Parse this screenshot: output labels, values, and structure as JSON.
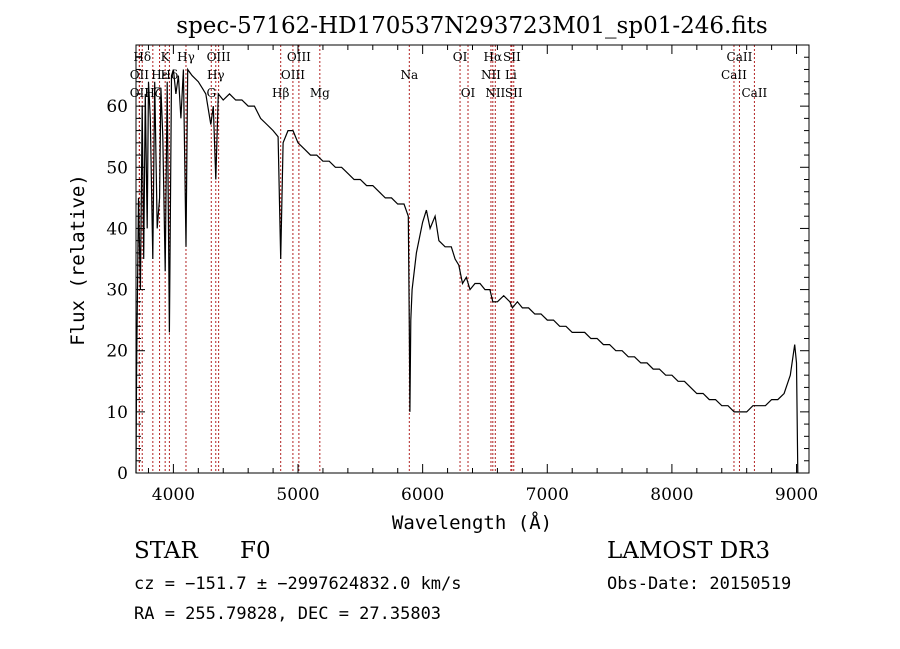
{
  "chart_data": {
    "type": "line",
    "title": "spec-57162-HD170537N293723M01_sp01-246.fits",
    "xlabel": "Wavelength (Å)",
    "ylabel": "Flux (relative)",
    "xlim": [
      3700,
      9100
    ],
    "ylim": [
      0,
      70
    ],
    "xticks": [
      4000,
      5000,
      6000,
      7000,
      8000,
      9000
    ],
    "yticks": [
      0,
      10,
      20,
      30,
      40,
      50,
      60
    ],
    "grid": false,
    "legend": "none",
    "line_color": "#000000",
    "marker_color": "#b22222",
    "spectrum": [
      [
        3700,
        0
      ],
      [
        3705,
        17
      ],
      [
        3720,
        45
      ],
      [
        3735,
        30
      ],
      [
        3750,
        60
      ],
      [
        3762,
        35
      ],
      [
        3775,
        62
      ],
      [
        3790,
        40
      ],
      [
        3800,
        64
      ],
      [
        3815,
        58
      ],
      [
        3835,
        35
      ],
      [
        3850,
        64
      ],
      [
        3870,
        40
      ],
      [
        3889,
        45
      ],
      [
        3900,
        63
      ],
      [
        3915,
        55
      ],
      [
        3934,
        33
      ],
      [
        3950,
        64
      ],
      [
        3968,
        23
      ],
      [
        3985,
        65
      ],
      [
        4000,
        66
      ],
      [
        4020,
        62
      ],
      [
        4040,
        65
      ],
      [
        4060,
        58
      ],
      [
        4080,
        66
      ],
      [
        4101,
        37
      ],
      [
        4115,
        66
      ],
      [
        4150,
        65
      ],
      [
        4200,
        64
      ],
      [
        4230,
        63
      ],
      [
        4260,
        62
      ],
      [
        4300,
        57
      ],
      [
        4320,
        60
      ],
      [
        4340,
        48
      ],
      [
        4360,
        62
      ],
      [
        4400,
        61
      ],
      [
        4450,
        62
      ],
      [
        4500,
        61
      ],
      [
        4550,
        61
      ],
      [
        4600,
        60
      ],
      [
        4650,
        60
      ],
      [
        4700,
        58
      ],
      [
        4750,
        57
      ],
      [
        4800,
        56
      ],
      [
        4840,
        55
      ],
      [
        4861,
        35
      ],
      [
        4880,
        54
      ],
      [
        4920,
        56
      ],
      [
        4960,
        56
      ],
      [
        5000,
        54
      ],
      [
        5050,
        53
      ],
      [
        5100,
        52
      ],
      [
        5150,
        52
      ],
      [
        5200,
        51
      ],
      [
        5250,
        51
      ],
      [
        5300,
        50
      ],
      [
        5350,
        50
      ],
      [
        5400,
        49
      ],
      [
        5450,
        48
      ],
      [
        5500,
        48
      ],
      [
        5550,
        47
      ],
      [
        5600,
        47
      ],
      [
        5650,
        46
      ],
      [
        5700,
        45
      ],
      [
        5750,
        45
      ],
      [
        5800,
        44
      ],
      [
        5850,
        44
      ],
      [
        5885,
        42
      ],
      [
        5893,
        24
      ],
      [
        5898,
        10
      ],
      [
        5905,
        25
      ],
      [
        5915,
        30
      ],
      [
        5950,
        36
      ],
      [
        6000,
        41
      ],
      [
        6030,
        43
      ],
      [
        6060,
        40
      ],
      [
        6100,
        42
      ],
      [
        6130,
        38
      ],
      [
        6180,
        37
      ],
      [
        6230,
        37
      ],
      [
        6260,
        35
      ],
      [
        6290,
        34
      ],
      [
        6320,
        31
      ],
      [
        6350,
        32
      ],
      [
        6380,
        30
      ],
      [
        6420,
        31
      ],
      [
        6460,
        31
      ],
      [
        6500,
        30
      ],
      [
        6540,
        30
      ],
      [
        6563,
        28
      ],
      [
        6600,
        28
      ],
      [
        6650,
        29
      ],
      [
        6700,
        28
      ],
      [
        6720,
        27
      ],
      [
        6760,
        28
      ],
      [
        6800,
        27
      ],
      [
        6850,
        27
      ],
      [
        6900,
        26
      ],
      [
        6950,
        26
      ],
      [
        7000,
        25
      ],
      [
        7050,
        25
      ],
      [
        7100,
        24
      ],
      [
        7150,
        24
      ],
      [
        7200,
        23
      ],
      [
        7250,
        23
      ],
      [
        7300,
        23
      ],
      [
        7350,
        22
      ],
      [
        7400,
        22
      ],
      [
        7450,
        21
      ],
      [
        7500,
        21
      ],
      [
        7550,
        20
      ],
      [
        7600,
        20
      ],
      [
        7650,
        19
      ],
      [
        7700,
        19
      ],
      [
        7750,
        18
      ],
      [
        7800,
        18
      ],
      [
        7850,
        17
      ],
      [
        7900,
        17
      ],
      [
        7950,
        16
      ],
      [
        8000,
        16
      ],
      [
        8050,
        15
      ],
      [
        8100,
        15
      ],
      [
        8150,
        14
      ],
      [
        8200,
        13
      ],
      [
        8250,
        13
      ],
      [
        8300,
        12
      ],
      [
        8350,
        12
      ],
      [
        8400,
        11
      ],
      [
        8450,
        11
      ],
      [
        8500,
        10
      ],
      [
        8550,
        10
      ],
      [
        8600,
        10
      ],
      [
        8650,
        11
      ],
      [
        8700,
        11
      ],
      [
        8750,
        11
      ],
      [
        8800,
        12
      ],
      [
        8850,
        12
      ],
      [
        8900,
        13
      ],
      [
        8950,
        16
      ],
      [
        8985,
        21
      ],
      [
        9000,
        18
      ],
      [
        9010,
        0
      ]
    ],
    "lines": [
      {
        "label": "Hδ",
        "x": 3750,
        "row": 0
      },
      {
        "label": "K",
        "x": 3934,
        "row": 0
      },
      {
        "label": "Hγ",
        "x": 4101,
        "row": 0
      },
      {
        "label": "OIII",
        "x": 4363,
        "row": 0
      },
      {
        "label": "OIII",
        "x": 5007,
        "row": 0
      },
      {
        "label": "OI",
        "x": 6300,
        "row": 0
      },
      {
        "label": "Hα",
        "x": 6563,
        "row": 0
      },
      {
        "label": "SII",
        "x": 6716,
        "row": 0
      },
      {
        "label": "CaII",
        "x": 8542,
        "row": 0
      },
      {
        "label": "OII",
        "x": 3727,
        "row": 1
      },
      {
        "label": "Hε",
        "x": 3889,
        "row": 1
      },
      {
        "label": "Hδ",
        "x": 3968,
        "row": 1
      },
      {
        "label": "Hγ",
        "x": 4340,
        "row": 1
      },
      {
        "label": "OIII",
        "x": 4959,
        "row": 1
      },
      {
        "label": "Na",
        "x": 5893,
        "row": 1
      },
      {
        "label": "NII",
        "x": 6548,
        "row": 1
      },
      {
        "label": "Li",
        "x": 6708,
        "row": 1
      },
      {
        "label": "CaII",
        "x": 8498,
        "row": 1
      },
      {
        "label": "OII",
        "x": 3727,
        "row": 2
      },
      {
        "label": "Hζ",
        "x": 3835,
        "row": 2
      },
      {
        "label": "G",
        "x": 4304,
        "row": 2
      },
      {
        "label": "Hβ",
        "x": 4861,
        "row": 2
      },
      {
        "label": "Mg",
        "x": 5175,
        "row": 2
      },
      {
        "label": "OI",
        "x": 6364,
        "row": 2
      },
      {
        "label": "NII",
        "x": 6583,
        "row": 2
      },
      {
        "label": "SII",
        "x": 6731,
        "row": 2
      },
      {
        "label": "CaII",
        "x": 8662,
        "row": 2
      }
    ]
  },
  "footer": {
    "object_class": "STAR",
    "subclass": "F0",
    "survey": "LAMOST DR3",
    "cz_line": "cz = −151.7 ± −2997624832.0 km/s",
    "obs_date": "Obs-Date: 20150519",
    "radec_line": "RA = 255.79828, DEC =  27.35803"
  }
}
